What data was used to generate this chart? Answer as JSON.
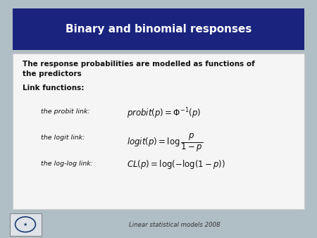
{
  "title": "Binary and binomial responses",
  "title_bg_color": "#1a237e",
  "title_text_color": "#ffffff",
  "slide_bg_color": "#b0bec5",
  "content_bg_color": "#f5f5f5",
  "footer_text": "Linear statistical models 2008",
  "body_line1": "The response probabilities are modelled as functions of",
  "body_line2": "the predictors",
  "link_header": "Link functions:",
  "link_labels": [
    "the probit link:",
    "the logit link:",
    "the log-log link:"
  ]
}
